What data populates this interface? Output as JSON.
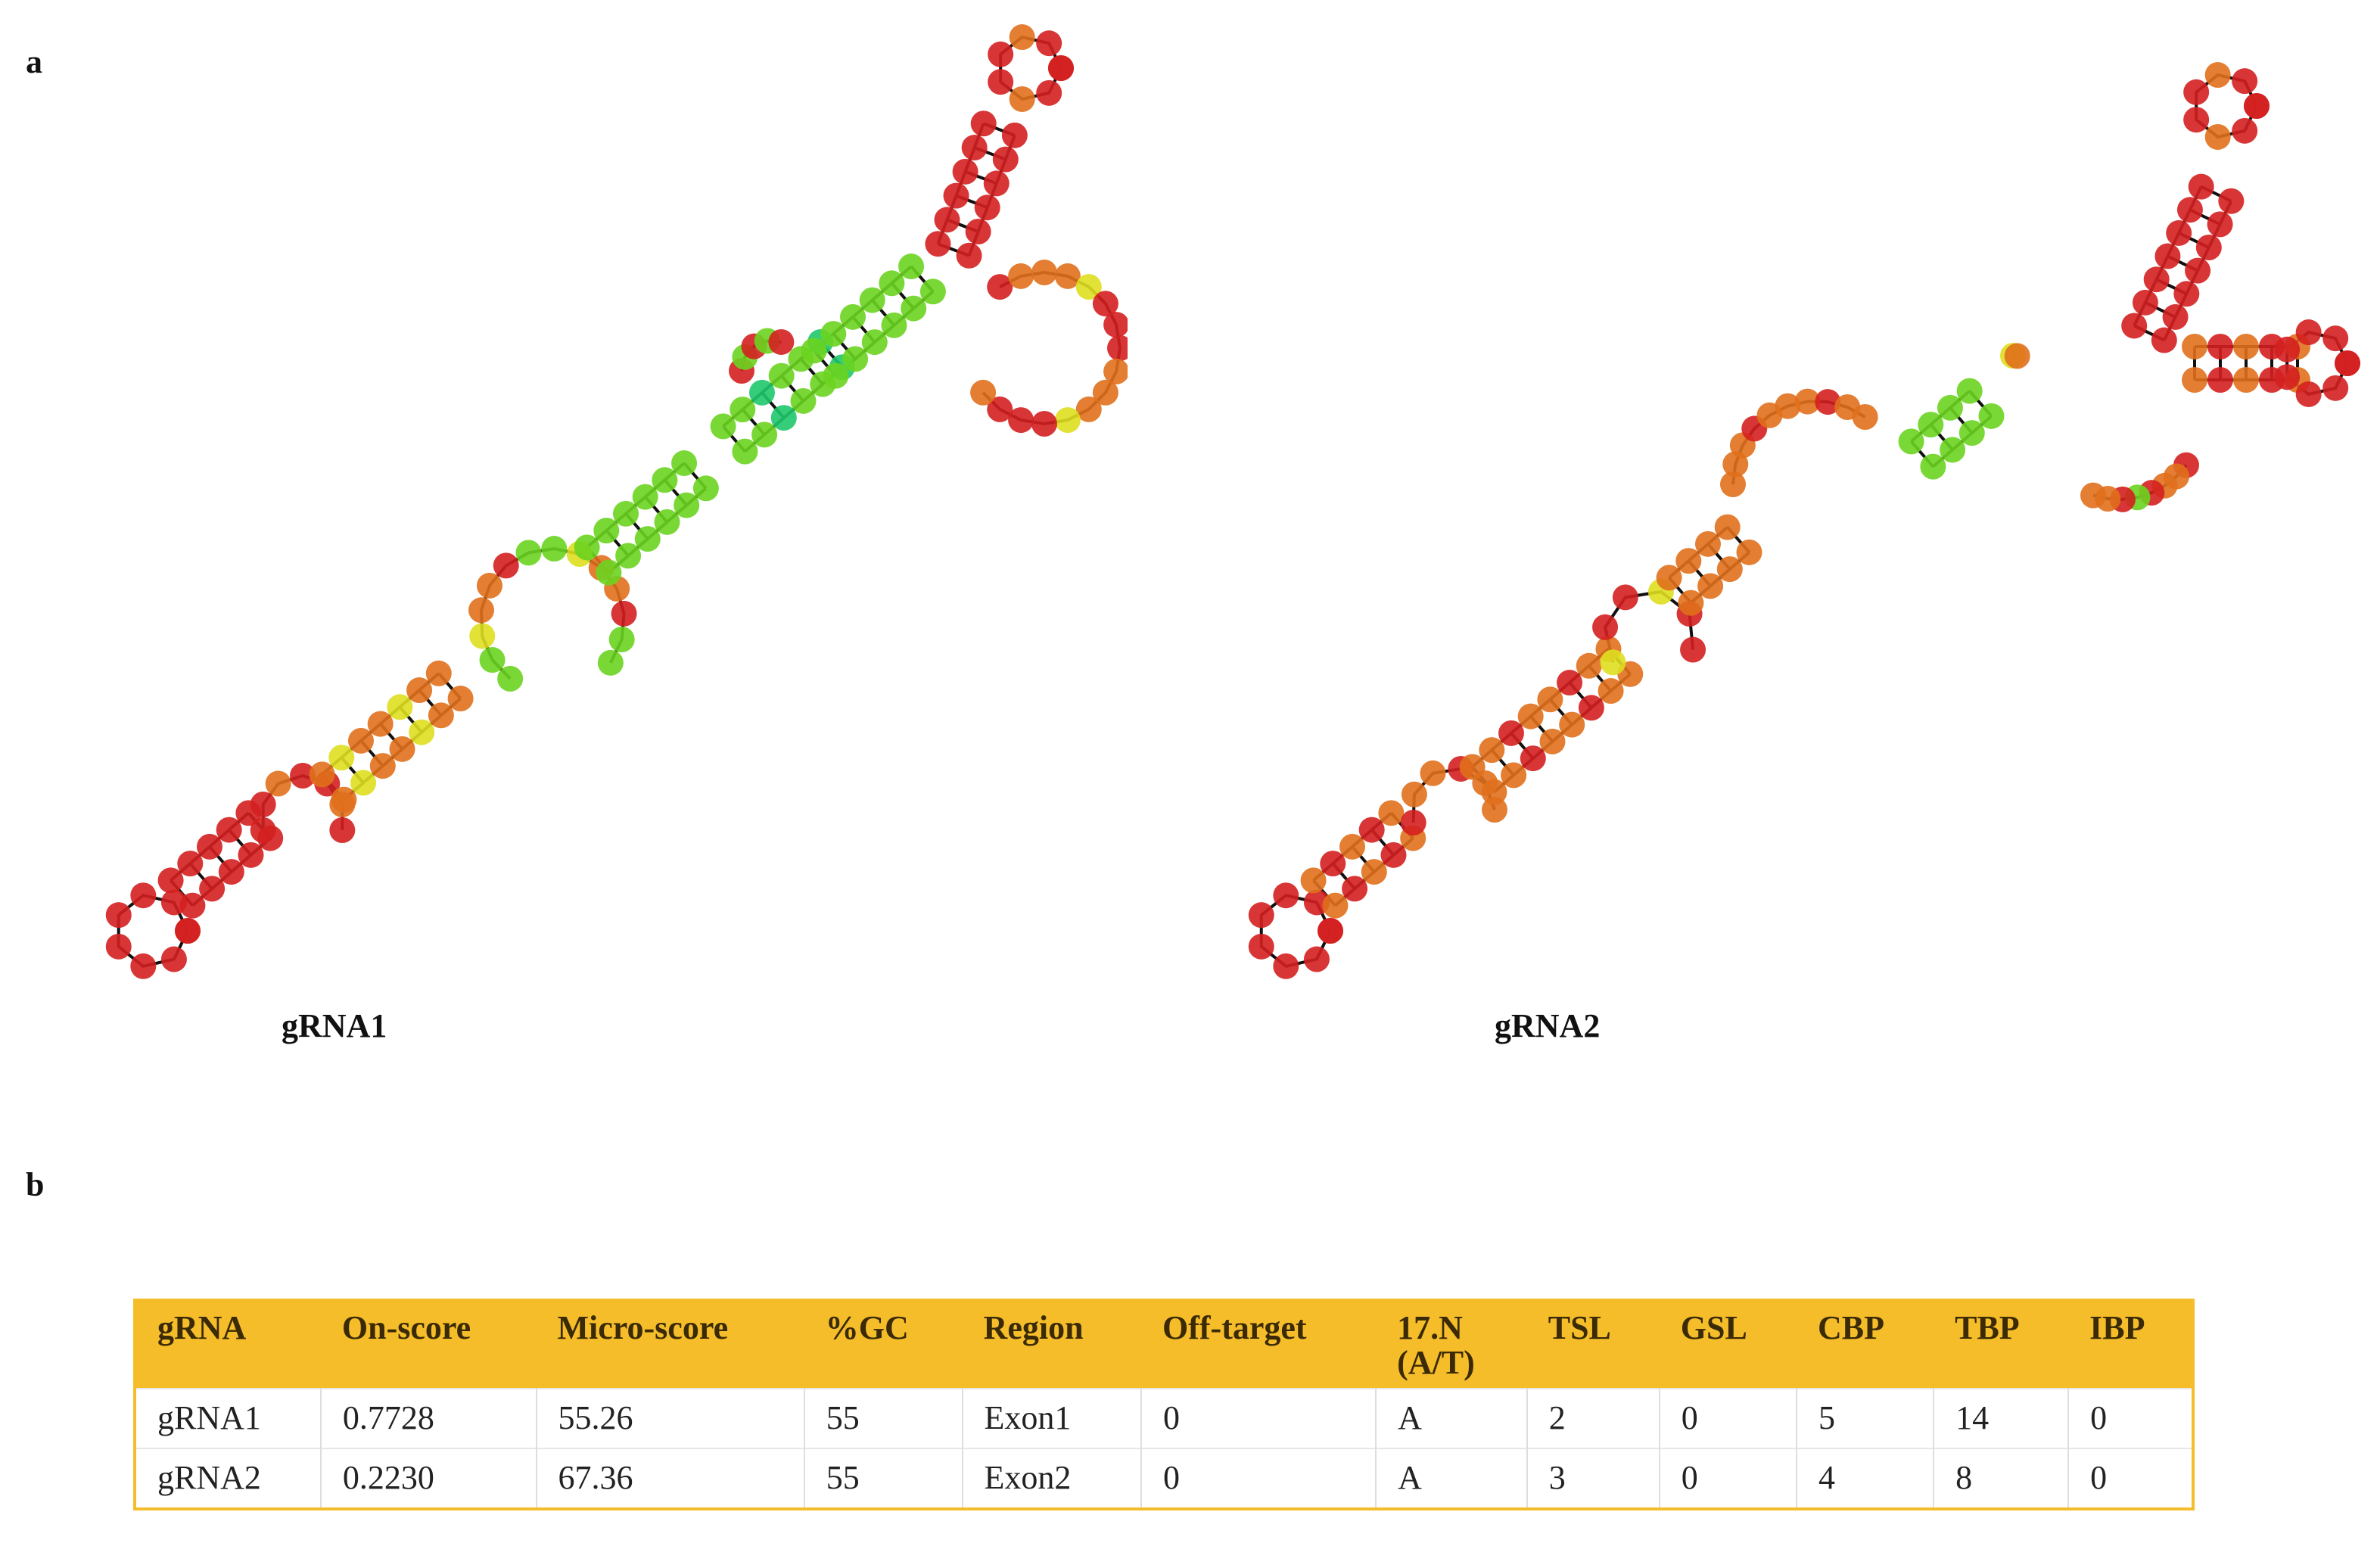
{
  "panels": {
    "a_label": "a",
    "b_label": "b"
  },
  "structures": [
    {
      "caption": "gRNA1"
    },
    {
      "caption": "gRNA2"
    }
  ],
  "table": {
    "headers": [
      "gRNA",
      "On-score",
      "Micro-score",
      "%GC",
      "Region",
      "Off-target",
      "17.N\n(A/T)",
      "TSL",
      "GSL",
      "CBP",
      "TBP",
      "IBP"
    ],
    "rows": [
      [
        "gRNA1",
        "0.7728",
        "55.26",
        "55",
        "Exon1",
        "0",
        "A",
        "2",
        "0",
        "5",
        "14",
        "0"
      ],
      [
        "gRNA2",
        "0.2230",
        "67.36",
        "55",
        "Exon2",
        "0",
        "A",
        "3",
        "0",
        "4",
        "8",
        "0"
      ]
    ]
  },
  "colors": {
    "table_header": "#f6bd2b",
    "base_red": "#d42020",
    "base_orange": "#e0701c",
    "base_yellow": "#dede20",
    "base_green": "#6cd420",
    "base_teal": "#20c86c"
  }
}
